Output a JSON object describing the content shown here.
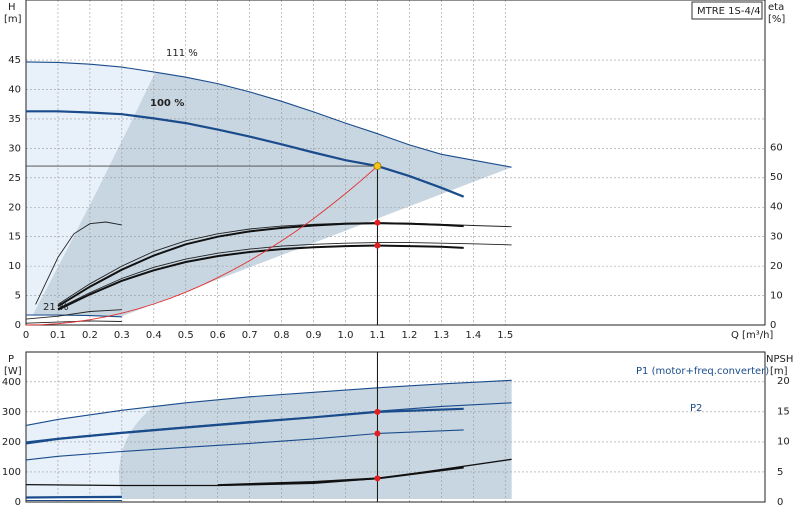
{
  "chart_data": [
    {
      "type": "line",
      "title": "MTRE 1S-4/4",
      "xlabel": "Q [m³/h]",
      "ylabel": "H",
      "ylabel_unit": "[m]",
      "y2label": "eta",
      "y2label_unit": "[%]",
      "xlim": [
        0,
        1.55
      ],
      "ylim": [
        0,
        50
      ],
      "y2lim": [
        0,
        85
      ],
      "x_ticks": [
        "0",
        "0.1",
        "0.2",
        "0.3",
        "0.4",
        "0.5",
        "0.6",
        "0.7",
        "0.8",
        "0.9",
        "1.0",
        "1.1",
        "1.2",
        "1.3",
        "1.4",
        "1.5"
      ],
      "y_ticks": [
        "0",
        "5",
        "10",
        "15",
        "20",
        "25",
        "30",
        "35",
        "40",
        "45"
      ],
      "y2_ticks": [
        "0",
        "10",
        "20",
        "30",
        "40",
        "50",
        "60"
      ],
      "grid": true,
      "labels": {
        "p111": "111 %",
        "p100": "100 %",
        "p21": "21 %"
      },
      "operating_point": {
        "Q": 1.1,
        "H": 27,
        "eta": 29.4
      },
      "series": [
        {
          "label_key": "p111",
          "x": [
            0,
            0.1,
            0.2,
            0.3,
            0.4,
            0.5,
            0.6,
            0.7,
            0.8,
            0.9,
            1.0,
            1.1,
            1.2,
            1.3,
            1.4,
            1.52
          ],
          "y": [
            44.7,
            44.6,
            44.3,
            43.8,
            43.0,
            42.1,
            41.0,
            39.6,
            38.0,
            36.2,
            34.3,
            32.5,
            30.6,
            29.0,
            28.0,
            26.8
          ]
        },
        {
          "label_key": "p100",
          "x": [
            0,
            0.1,
            0.2,
            0.3,
            0.4,
            0.5,
            0.6,
            0.7,
            0.8,
            0.9,
            1.0,
            1.1,
            1.2,
            1.3,
            1.37
          ],
          "y": [
            36.3,
            36.3,
            36.1,
            35.8,
            35.1,
            34.3,
            33.2,
            32.0,
            30.7,
            29.3,
            28.0,
            27.0,
            25.3,
            23.3,
            21.8
          ]
        },
        {
          "label_key": "p21",
          "x": [
            0,
            0.1,
            0.2,
            0.3
          ],
          "y": [
            1.7,
            1.7,
            1.6,
            1.4
          ]
        },
        {
          "x": [
            0.03,
            0.1,
            0.15,
            0.2,
            0.25,
            0.3
          ],
          "y": [
            3.5,
            11.5,
            15.5,
            17.2,
            17.5,
            17.0
          ]
        },
        {
          "x": [
            0.1,
            0.2,
            0.3,
            0.4,
            0.5,
            0.6,
            0.7,
            0.8,
            0.9,
            1.0,
            1.1,
            1.2,
            1.3,
            1.4,
            1.52
          ],
          "y": [
            3.5,
            7.0,
            10.0,
            12.5,
            14.3,
            15.5,
            16.3,
            16.8,
            17.1,
            17.3,
            17.4,
            17.3,
            17.1,
            16.9,
            16.7
          ]
        },
        {
          "x": [
            0.1,
            0.2,
            0.3,
            0.4,
            0.5,
            0.6,
            0.7,
            0.8,
            0.9,
            1.0,
            1.1,
            1.2,
            1.3,
            1.37
          ],
          "y": [
            3.2,
            6.5,
            9.4,
            11.8,
            13.7,
            15.0,
            15.9,
            16.5,
            16.9,
            17.2,
            17.3,
            17.2,
            17.0,
            16.8
          ]
        },
        {
          "x": [
            0.1,
            0.2,
            0.3,
            0.4,
            0.5,
            0.6,
            0.7,
            0.8,
            0.9,
            1.0,
            1.1,
            1.2,
            1.3,
            1.4,
            1.52
          ],
          "y": [
            2.8,
            5.5,
            7.9,
            9.8,
            11.2,
            12.2,
            12.9,
            13.4,
            13.7,
            13.9,
            14.0,
            14.0,
            13.9,
            13.8,
            13.6
          ]
        },
        {
          "x": [
            0.1,
            0.2,
            0.3,
            0.4,
            0.5,
            0.6,
            0.7,
            0.8,
            0.9,
            1.0,
            1.1,
            1.2,
            1.3,
            1.37
          ],
          "y": [
            2.6,
            5.2,
            7.5,
            9.3,
            10.7,
            11.7,
            12.4,
            12.9,
            13.2,
            13.4,
            13.5,
            13.4,
            13.3,
            13.1
          ]
        },
        {
          "x": [
            0,
            0.1,
            0.2,
            0.3
          ],
          "y": [
            1.0,
            1.5,
            2.3,
            2.6
          ]
        },
        {
          "x": [
            0,
            0.1,
            0.2,
            0.3
          ],
          "y": [
            0.3,
            0.5,
            0.7,
            0.6
          ]
        }
      ]
    },
    {
      "type": "line",
      "xlim": [
        0,
        1.55
      ],
      "ylabel": "P",
      "ylabel_unit": "[W]",
      "y2label": "NPSH",
      "y2label_unit": "[m]",
      "ylim": [
        0,
        440
      ],
      "y2lim": [
        0,
        22
      ],
      "y_ticks": [
        "0",
        "100",
        "200",
        "300",
        "400"
      ],
      "y2_ticks": [
        "0",
        "5",
        "10",
        "15",
        "20"
      ],
      "grid": true,
      "labels": {
        "p1": "P1 (motor+freq.converter)",
        "p2": "P2"
      },
      "operating_points": {
        "P1": 300,
        "P2": 228,
        "NPSH": 3.9
      },
      "series": [
        {
          "label_key": "p1",
          "x": [
            0,
            0.1,
            0.3,
            0.5,
            0.7,
            0.9,
            1.1,
            1.3,
            1.52
          ],
          "y": [
            255,
            275,
            305,
            330,
            350,
            365,
            380,
            393,
            405
          ]
        },
        {
          "x": [
            0,
            0.1,
            0.3,
            0.5,
            0.7,
            0.9,
            1.1,
            1.3,
            1.52
          ],
          "y": [
            200,
            212,
            232,
            250,
            268,
            283,
            302,
            318,
            330
          ]
        },
        {
          "label_key": "p2",
          "x": [
            0,
            0.1,
            0.3,
            0.5,
            0.7,
            0.9,
            1.1,
            1.37
          ],
          "y": [
            195,
            210,
            230,
            248,
            265,
            282,
            300,
            310
          ]
        },
        {
          "x": [
            0,
            0.1,
            0.3,
            0.5,
            0.7,
            0.9,
            1.1,
            1.37
          ],
          "y": [
            140,
            152,
            168,
            182,
            195,
            210,
            228,
            240
          ]
        },
        {
          "x": [
            0,
            0.1,
            0.3
          ],
          "y": [
            15,
            16,
            17
          ]
        },
        {
          "x": [
            0,
            0.3
          ],
          "y": [
            5,
            5
          ]
        },
        {
          "x": [
            0,
            0.3,
            0.6,
            0.9,
            1.1,
            1.3,
            1.52
          ],
          "y": [
            58,
            55,
            55,
            62,
            78,
            108,
            142
          ]
        }
      ]
    }
  ]
}
